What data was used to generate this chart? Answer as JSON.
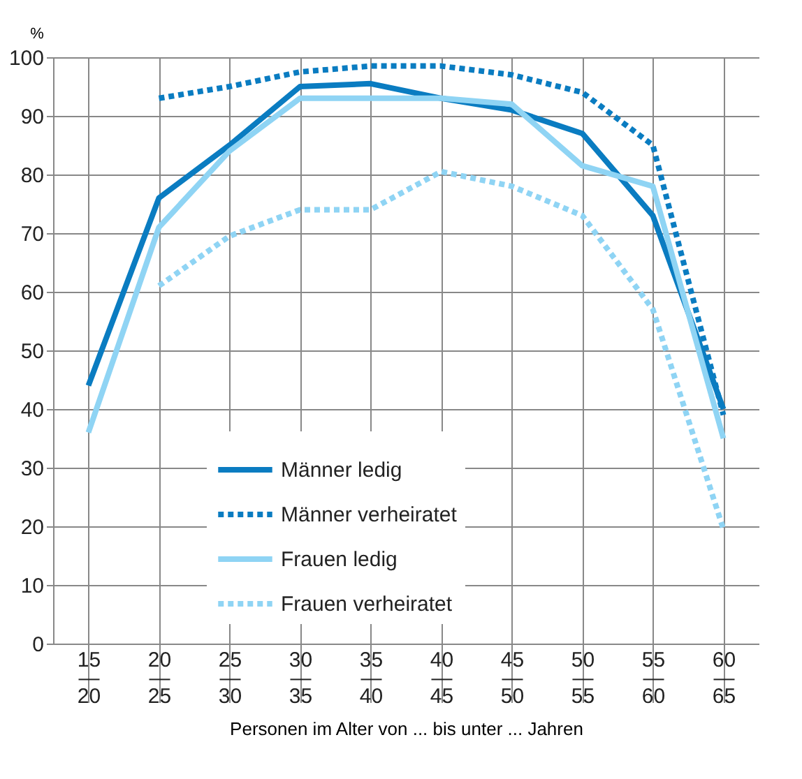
{
  "chart_data": {
    "type": "line",
    "xlabel": "Personen im Alter von ... bis unter ... Jahren",
    "ylabel": "%",
    "categories": [
      "15 — 20",
      "20 — 25",
      "25 — 30",
      "30 — 35",
      "35 — 40",
      "40 — 45",
      "45 — 50",
      "50 — 55",
      "55 — 60",
      "60 — 65"
    ],
    "ylim": [
      0,
      100
    ],
    "yticks": [
      0,
      10,
      20,
      30,
      40,
      50,
      60,
      70,
      80,
      90,
      100
    ],
    "grid": true,
    "legend": "bottom",
    "marker": "none",
    "series": [
      {
        "name": "Männer ledig",
        "color": "#0a7cc1",
        "line_style": "solid",
        "values": [
          44,
          76,
          85,
          95,
          95.5,
          93,
          91,
          87,
          73,
          40
        ]
      },
      {
        "name": "Männer verheiratet",
        "color": "#0a7cc1",
        "line_style": "dotted",
        "values": [
          null,
          93,
          95,
          97.5,
          98.5,
          98.5,
          97,
          94,
          85,
          39
        ]
      },
      {
        "name": "Frauen ledig",
        "color": "#8fd4f4",
        "line_style": "solid",
        "values": [
          36,
          71,
          84,
          93,
          93,
          93,
          92,
          81.5,
          78,
          35
        ]
      },
      {
        "name": "Frauen verheiratet",
        "color": "#8fd4f4",
        "line_style": "dotted",
        "values": [
          null,
          61,
          69.5,
          74,
          74,
          80.5,
          78,
          73,
          57,
          19.5
        ]
      }
    ]
  }
}
